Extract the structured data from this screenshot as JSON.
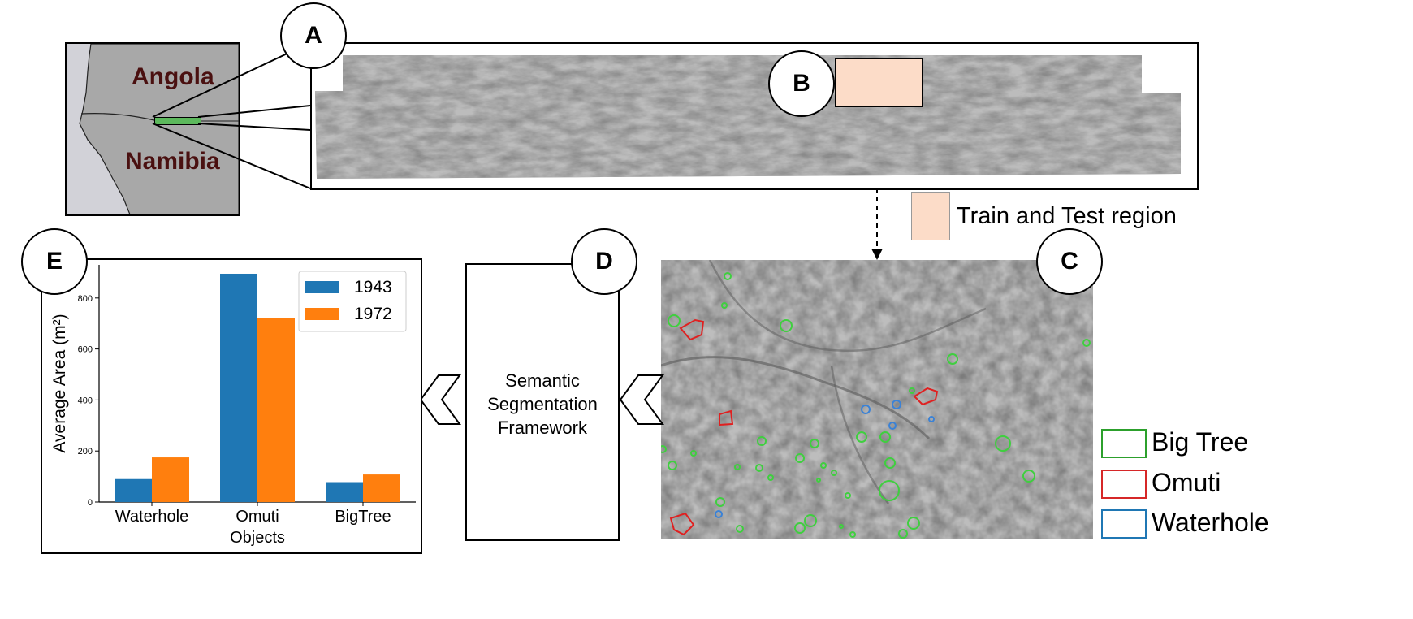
{
  "map": {
    "country_north": "Angola",
    "country_south": "Namibia",
    "colors": {
      "land": "#a8a8a8",
      "sea": "#d2d2d8",
      "label": "#4a1010",
      "region": "#5cb85c"
    }
  },
  "labels": {
    "a": "A",
    "b": "B",
    "c": "C",
    "d": "D",
    "e": "E"
  },
  "region_legend": {
    "label": "Train and Test region",
    "color": "#fcdcc8"
  },
  "framework": {
    "line1": "Semantic",
    "line2": "Segmentation",
    "line3": "Framework"
  },
  "class_legend": [
    {
      "label": "Big Tree",
      "color": "#2ca02c"
    },
    {
      "label": "Omuti",
      "color": "#d62728"
    },
    {
      "label": "Waterhole",
      "color": "#1f77b4"
    }
  ],
  "chart_data": {
    "type": "bar",
    "categories": [
      "Waterhole",
      "Omuti\nObjects",
      "BigTree"
    ],
    "series": [
      {
        "name": "1943",
        "color": "#1f77b4",
        "values": [
          90,
          895,
          78
        ]
      },
      {
        "name": "1972",
        "color": "#ff7f0e",
        "values": [
          175,
          720,
          108
        ]
      }
    ],
    "ylabel": "Average Area (m²)",
    "ylim": [
      0,
      930
    ],
    "yticks": [
      0,
      200,
      400,
      600,
      800
    ],
    "legend": "top-right",
    "grid": false
  }
}
